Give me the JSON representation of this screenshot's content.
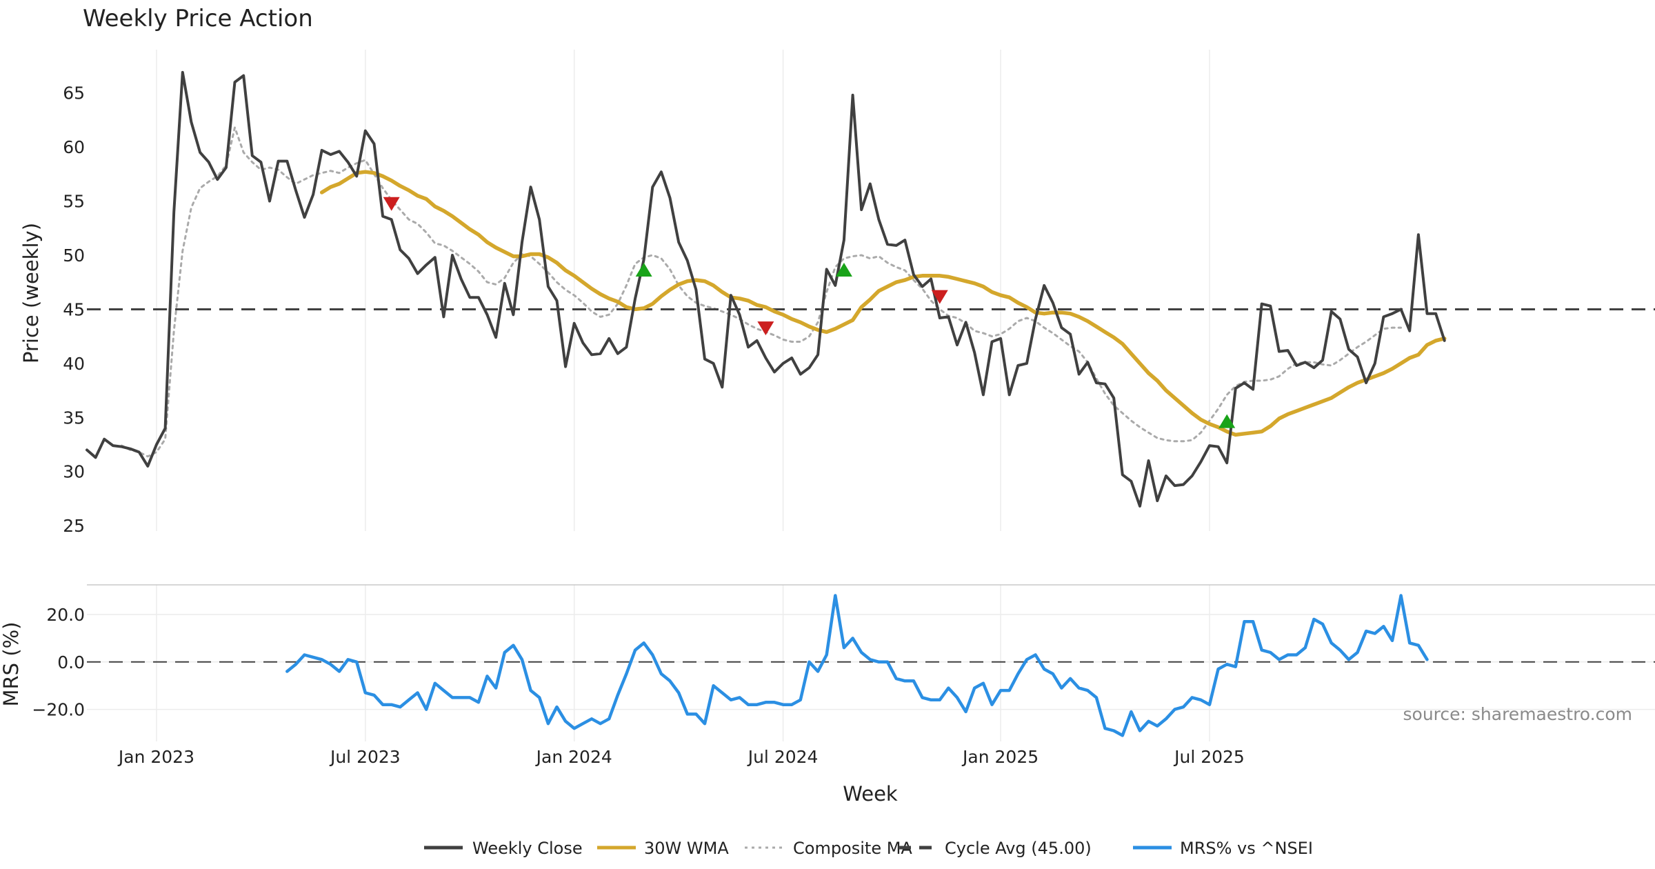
{
  "chart_data": [
    {
      "type": "line",
      "title": "Weekly Price Action",
      "xlabel": "",
      "ylabel": "Price (weekly)",
      "ylim": [
        24.5,
        69
      ],
      "yticks": [
        25,
        30,
        35,
        40,
        45,
        50,
        55,
        60,
        65
      ],
      "x_start_week": 0,
      "series": [
        {
          "name": "Weekly Close",
          "color": "#404040",
          "style": "solid",
          "start": 0,
          "values": [
            32,
            31.3,
            33,
            32.4,
            32.3,
            32.1,
            31.8,
            30.5,
            32.5,
            34,
            54,
            66.9,
            62.3,
            59.5,
            58.6,
            57,
            58.1,
            66,
            66.6,
            59.2,
            58.6,
            55,
            58.7,
            58.7,
            56,
            53.5,
            55.6,
            59.7,
            59.3,
            59.6,
            58.6,
            57.3,
            61.5,
            60.3,
            53.6,
            53.3,
            50.5,
            49.7,
            48.3,
            49.1,
            49.8,
            44.3,
            50,
            47.8,
            46.1,
            46.1,
            44.5,
            42.4,
            47.4,
            44.5,
            51.2,
            56.3,
            53.3,
            47.1,
            45.8,
            39.7,
            43.7,
            41.9,
            40.8,
            40.9,
            42.3,
            40.9,
            41.5,
            46,
            49.6,
            56.3,
            57.7,
            55.3,
            51.2,
            49.5,
            46.8,
            40.4,
            40,
            37.8,
            46.3,
            44.5,
            41.5,
            42.1,
            40.5,
            39.2,
            40,
            40.5,
            39,
            39.6,
            40.8,
            48.7,
            47.2,
            51.4,
            64.8,
            54.2,
            56.6,
            53.3,
            51,
            50.9,
            51.4,
            48.2,
            47.1,
            47.8,
            44.2,
            44.3,
            41.7,
            43.8,
            41,
            37.1,
            42,
            42.3,
            37.1,
            39.8,
            40,
            44.1,
            47.2,
            45.6,
            43.3,
            42.7,
            39,
            40.1,
            38.2,
            38.1,
            36.8,
            29.7,
            29.1,
            26.8,
            31,
            27.3,
            29.6,
            28.7,
            28.8,
            29.6,
            30.9,
            32.4,
            32.3,
            30.8,
            37.7,
            38.2,
            37.6,
            45.5,
            45.3,
            41.1,
            41.2,
            39.8,
            40.1,
            39.6,
            40.3,
            44.8,
            44.1,
            41.3,
            40.6,
            38.2,
            40,
            44.3,
            44.6,
            45,
            43,
            51.9,
            44.6,
            44.6,
            42.1
          ]
        },
        {
          "name": "30W WMA",
          "color": "#d4a72c",
          "style": "solid",
          "start": 27,
          "values": [
            55.8,
            56.3,
            56.6,
            57.1,
            57.6,
            57.7,
            57.6,
            57.3,
            56.9,
            56.4,
            56,
            55.5,
            55.2,
            54.5,
            54.1,
            53.6,
            53,
            52.4,
            51.9,
            51.2,
            50.7,
            50.3,
            49.9,
            49.9,
            50.1,
            50.1,
            49.8,
            49.3,
            48.6,
            48.1,
            47.5,
            46.9,
            46.4,
            46,
            45.7,
            45.2,
            45,
            45.1,
            45.5,
            46.2,
            46.8,
            47.3,
            47.6,
            47.7,
            47.6,
            47.2,
            46.6,
            46.1,
            46,
            45.8,
            45.4,
            45.2,
            44.8,
            44.5,
            44.1,
            43.8,
            43.4,
            43.1,
            42.9,
            43.2,
            43.6,
            44,
            45.2,
            45.9,
            46.7,
            47.1,
            47.5,
            47.7,
            48,
            48.1,
            48.1,
            48.1,
            48,
            47.8,
            47.6,
            47.4,
            47.1,
            46.6,
            46.3,
            46.1,
            45.6,
            45.2,
            44.7,
            44.6,
            44.7,
            44.7,
            44.6,
            44.3,
            43.9,
            43.4,
            42.9,
            42.4,
            41.8,
            40.9,
            40,
            39.1,
            38.4,
            37.5,
            36.8,
            36.1,
            35.4,
            34.8,
            34.4,
            34.1,
            33.7,
            33.4,
            33.5,
            33.6,
            33.7,
            34.2,
            34.9,
            35.3,
            35.6,
            35.9,
            36.2,
            36.5,
            36.8,
            37.3,
            37.8,
            38.2,
            38.5,
            38.8,
            39.1,
            39.5,
            40,
            40.5,
            40.8,
            41.7,
            42.1,
            42.3
          ]
        },
        {
          "name": "Composite MA",
          "color": "#aaaaaa",
          "style": "dotted",
          "start": 4,
          "values": [
            32.4,
            32,
            31.8,
            31.4,
            31.8,
            33,
            43,
            50.4,
            54.4,
            56.2,
            56.8,
            57.3,
            58.3,
            61.8,
            59.5,
            58.6,
            57.9,
            58.1,
            57.9,
            57.2,
            56.6,
            57,
            57.4,
            57.6,
            57.8,
            57.6,
            58.1,
            58.5,
            58.8,
            57.5,
            56.2,
            55.1,
            54.2,
            53.3,
            52.9,
            52.1,
            51.1,
            50.9,
            50.4,
            49.8,
            49.2,
            48.5,
            47.5,
            47.3,
            47.9,
            49.3,
            50.1,
            49.9,
            49.2,
            48.4,
            47.5,
            46.8,
            46.3,
            45.6,
            44.8,
            44.3,
            44.5,
            45.5,
            47.2,
            49.2,
            49.8,
            50,
            49.7,
            48.7,
            47.2,
            46.2,
            45.6,
            45.3,
            45.1,
            44.8,
            44.5,
            44.1,
            43.6,
            43.2,
            42.9,
            42.6,
            42.2,
            42,
            42,
            42.5,
            43.8,
            46.6,
            48.9,
            49.7,
            49.9,
            50,
            49.7,
            49.9,
            49.3,
            48.9,
            48.6,
            47.7,
            46.9,
            45.8,
            45,
            44.4,
            44.2,
            43.7,
            43,
            42.8,
            42.5,
            42.7,
            43.2,
            43.9,
            44.2,
            43.9,
            43.3,
            42.8,
            42.2,
            41.6,
            41.1,
            40.1,
            38.6,
            37.2,
            36.1,
            35.4,
            34.7,
            34.1,
            33.6,
            33.1,
            32.9,
            32.8,
            32.8,
            32.9,
            33.6,
            34.7,
            35.8,
            37.1,
            37.9,
            38.3,
            38.4,
            38.4,
            38.5,
            38.8,
            39.5,
            40,
            40.1,
            40.1,
            39.9,
            39.8,
            40.3,
            40.9,
            41.5,
            42,
            42.6,
            43.2,
            43.3,
            43.3
          ]
        },
        {
          "name": "Cycle Avg (45.00)",
          "color": "#404040",
          "style": "dashed",
          "level": 45.0
        }
      ],
      "markers": [
        {
          "kind": "sell",
          "week": 35,
          "value": 54.8,
          "color": "#cc1f1f"
        },
        {
          "kind": "buy",
          "week": 64,
          "value": 48.6,
          "color": "#19a319"
        },
        {
          "kind": "sell",
          "week": 78,
          "value": 43.3,
          "color": "#cc1f1f"
        },
        {
          "kind": "buy",
          "week": 87,
          "value": 48.6,
          "color": "#19a319"
        },
        {
          "kind": "sell",
          "week": 98,
          "value": 46.2,
          "color": "#cc1f1f"
        },
        {
          "kind": "buy",
          "week": 131,
          "value": 34.6,
          "color": "#19a319"
        }
      ]
    },
    {
      "type": "line",
      "title": "",
      "xlabel": "Week",
      "ylabel": "MRS (%)",
      "ylim": [
        -33.5,
        32.5
      ],
      "yticks": [
        20,
        0,
        -20
      ],
      "ytick_labels": [
        "20.0",
        "0.0",
        "−20.0"
      ],
      "xticks": [
        {
          "label": "Jan 2023",
          "week": 8
        },
        {
          "label": "Jul 2023",
          "week": 32
        },
        {
          "label": "Jan 2024",
          "week": 56
        },
        {
          "label": "Jul 2024",
          "week": 80
        },
        {
          "label": "Jan 2025",
          "week": 105
        },
        {
          "label": "Jul 2025",
          "week": 129
        }
      ],
      "series": [
        {
          "name": "MRS% vs ^NSEI",
          "color": "#2b8fe3",
          "style": "solid",
          "start": 23,
          "values": [
            -4,
            -1,
            3,
            2,
            1,
            -1,
            -4,
            1,
            0,
            -13,
            -14,
            -18,
            -18,
            -19,
            -16,
            -13,
            -20,
            -9,
            -12,
            -15,
            -15,
            -15,
            -17,
            -6,
            -11,
            4,
            7,
            1,
            -12,
            -15,
            -26,
            -19,
            -25,
            -28,
            -26,
            -24,
            -26,
            -24,
            -14,
            -5,
            5,
            8,
            3,
            -5,
            -8,
            -13,
            -22,
            -22,
            -26,
            -10,
            -13,
            -16,
            -15,
            -18,
            -18,
            -17,
            -17,
            -18,
            -18,
            -16,
            0,
            -4,
            3,
            28,
            6,
            10,
            4,
            1,
            0,
            0,
            -7,
            -8,
            -8,
            -15,
            -16,
            -16,
            -11,
            -15,
            -21,
            -11,
            -9,
            -18,
            -12,
            -12,
            -5,
            1,
            3,
            -3,
            -5,
            -11,
            -7,
            -11,
            -12,
            -15,
            -28,
            -29,
            -31,
            -21,
            -29,
            -25,
            -27,
            -24,
            -20,
            -19,
            -15,
            -16,
            -18,
            -3,
            -1,
            -2,
            17,
            17,
            5,
            4,
            1,
            3,
            3,
            6,
            18,
            16,
            8,
            5,
            1,
            4,
            13,
            12,
            15,
            9,
            28,
            8,
            7,
            1
          ]
        },
        {
          "name": "zero-line",
          "color": "#404040",
          "style": "dashed",
          "level": 0
        }
      ]
    }
  ],
  "legend": {
    "placement": "bottom-center",
    "items": [
      {
        "label": "Weekly Close",
        "color": "#404040",
        "style": "solid"
      },
      {
        "label": "30W WMA",
        "color": "#d4a72c",
        "style": "solid"
      },
      {
        "label": "Composite MA",
        "color": "#aaaaaa",
        "style": "dotted"
      },
      {
        "label": "Cycle Avg (45.00)",
        "color": "#404040",
        "style": "dashed"
      },
      {
        "label": "MRS% vs ^NSEI",
        "color": "#2b8fe3",
        "style": "solid"
      }
    ]
  },
  "source_note": "source: sharemaestro.com"
}
